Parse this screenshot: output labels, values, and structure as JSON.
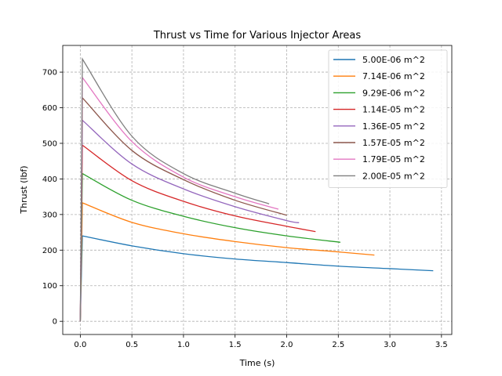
{
  "chart_data": {
    "type": "line",
    "title": "Thrust vs Time for Various Injector Areas",
    "xlabel": "Time (s)",
    "ylabel": "Thrust (lbf)",
    "xlim": [
      -0.17,
      3.6
    ],
    "ylim": [
      -37,
      775
    ],
    "xticks": [
      0.0,
      0.5,
      1.0,
      1.5,
      2.0,
      2.5,
      3.0,
      3.5
    ],
    "xtick_labels": [
      "0.0",
      "0.5",
      "1.0",
      "1.5",
      "2.0",
      "2.5",
      "3.0",
      "3.5"
    ],
    "yticks": [
      0,
      100,
      200,
      300,
      400,
      500,
      600,
      700
    ],
    "ytick_labels": [
      "0",
      "100",
      "200",
      "300",
      "400",
      "500",
      "600",
      "700"
    ],
    "grid": true,
    "legend_position": "top-right",
    "series": [
      {
        "name": "5.00E-06 m^2",
        "color": "#1f77b4",
        "x": [
          0,
          0.02,
          0.5,
          1.0,
          1.5,
          2.0,
          2.5,
          3.0,
          3.42
        ],
        "y": [
          0,
          240,
          212,
          190,
          175,
          165,
          155,
          148,
          142
        ]
      },
      {
        "name": "7.14E-06 m^2",
        "color": "#ff7f0e",
        "x": [
          0,
          0.02,
          0.5,
          1.0,
          1.5,
          2.0,
          2.5,
          2.85
        ],
        "y": [
          0,
          333,
          278,
          246,
          224,
          207,
          195,
          186
        ]
      },
      {
        "name": "9.29E-06 m^2",
        "color": "#2ca02c",
        "x": [
          0,
          0.02,
          0.5,
          1.0,
          1.5,
          2.0,
          2.52
        ],
        "y": [
          0,
          415,
          340,
          295,
          263,
          240,
          222
        ]
      },
      {
        "name": "1.14E-05 m^2",
        "color": "#d62728",
        "x": [
          0,
          0.02,
          0.5,
          1.0,
          1.5,
          2.0,
          2.28
        ],
        "y": [
          0,
          495,
          395,
          337,
          296,
          267,
          252
        ]
      },
      {
        "name": "1.36E-05 m^2",
        "color": "#9467bd",
        "x": [
          0,
          0.02,
          0.5,
          1.0,
          1.5,
          2.0,
          2.12
        ],
        "y": [
          0,
          565,
          442,
          372,
          322,
          283,
          277
        ]
      },
      {
        "name": "1.57E-05 m^2",
        "color": "#8c564b",
        "x": [
          0,
          0.02,
          0.5,
          1.0,
          1.5,
          2.0
        ],
        "y": [
          0,
          628,
          480,
          398,
          340,
          298
        ]
      },
      {
        "name": "1.79E-05 m^2",
        "color": "#e377c2",
        "x": [
          0,
          0.02,
          0.5,
          1.0,
          1.5,
          1.92
        ],
        "y": [
          0,
          685,
          505,
          405,
          350,
          315
        ]
      },
      {
        "name": "2.00E-05 m^2",
        "color": "#7f7f7f",
        "x": [
          0,
          0.02,
          0.5,
          1.0,
          1.5,
          1.83
        ],
        "y": [
          0,
          737,
          520,
          415,
          360,
          330
        ]
      }
    ]
  }
}
